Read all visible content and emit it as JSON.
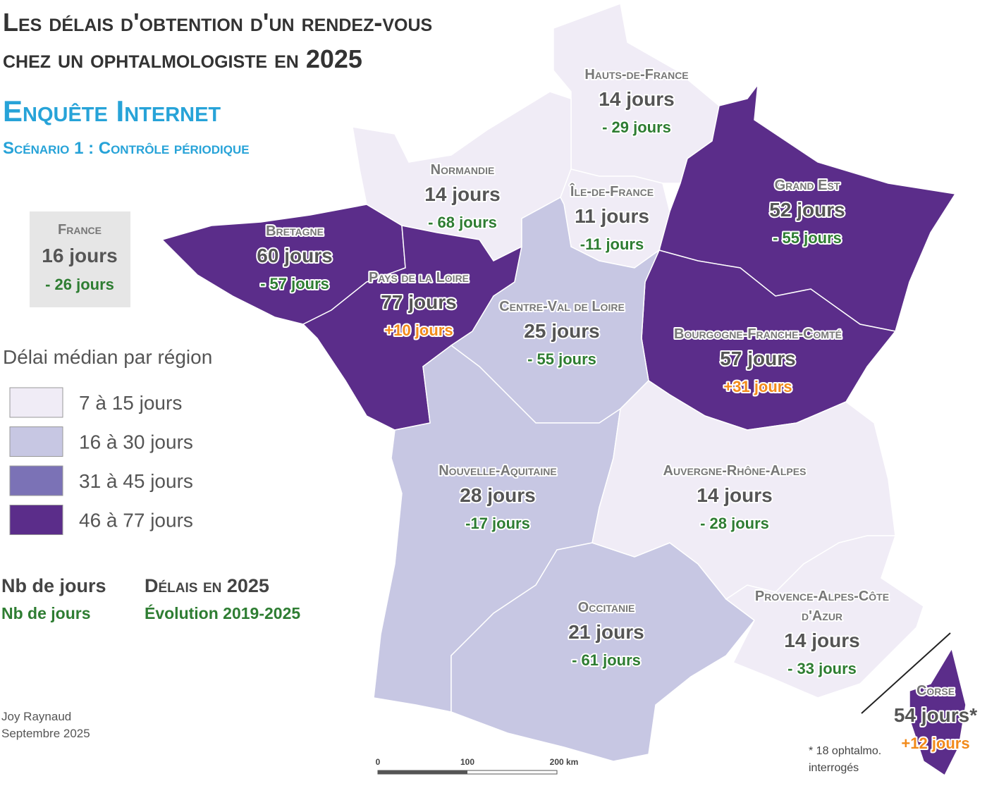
{
  "title": [
    "Les délais d'obtention d'un rendez-vous",
    "chez un ophtalmologiste en 2025"
  ],
  "subtitle": "Enquête Internet",
  "scenario": "Scénario 1 : Contrôle périodique",
  "france": {
    "name": "France",
    "days": "16 jours",
    "evolution": "- 26 jours"
  },
  "legend": {
    "title": "Délai médian par région",
    "classes": [
      {
        "label": "7 à 15 jours",
        "color": "#f0ecf6"
      },
      {
        "label": "16 à 30 jours",
        "color": "#c7c7e3"
      },
      {
        "label": "31 à 45 jours",
        "color": "#7b72b6"
      },
      {
        "label": "46 à 77 jours",
        "color": "#5b2d8a"
      }
    ]
  },
  "key": {
    "days": "Nb de jours",
    "days_label": "Délais en 2025",
    "evolution": "Nb de jours",
    "evolution_label": "Évolution 2019-2025"
  },
  "credit": [
    "Joy Raynaud",
    "Septembre 2025"
  ],
  "scale": [
    "0",
    "100",
    "200 km"
  ],
  "note": [
    "* 18 ophtalmo.",
    "interrogés"
  ],
  "regions": [
    {
      "name": [
        "Hauts-de-France"
      ],
      "days": "14 jours",
      "evolution": "- 29 jours",
      "color": "#f0ecf6",
      "evolution_color": "#2e7d32"
    },
    {
      "name": [
        "Normandie"
      ],
      "days": "14 jours",
      "evolution": "- 68 jours",
      "color": "#f0ecf6",
      "evolution_color": "#2e7d32"
    },
    {
      "name": [
        "Île-de-France"
      ],
      "days": "11 jours",
      "evolution": "-11 jours",
      "color": "#f0ecf6",
      "evolution_color": "#2e7d32"
    },
    {
      "name": [
        "Grand Est"
      ],
      "days": "52 jours",
      "evolution": "- 55 jours",
      "color": "#5b2d8a",
      "evolution_color": "#2e7d32"
    },
    {
      "name": [
        "Bourgogne-Franche-Comté"
      ],
      "days": "57 jours",
      "evolution": "+31 jours",
      "color": "#5b2d8a",
      "evolution_color": "#f28a1a"
    },
    {
      "name": [
        "Bretagne"
      ],
      "days": "60 jours",
      "evolution": "- 57 jours",
      "color": "#5b2d8a",
      "evolution_color": "#2e7d32"
    },
    {
      "name": [
        "Pays de la Loire"
      ],
      "days": "77 jours",
      "evolution": "+10 jours",
      "color": "#5b2d8a",
      "evolution_color": "#f28a1a"
    },
    {
      "name": [
        "Centre-Val de Loire"
      ],
      "days": "25 jours",
      "evolution": "- 55 jours",
      "color": "#c7c7e3",
      "evolution_color": "#2e7d32"
    },
    {
      "name": [
        "Nouvelle-Aquitaine"
      ],
      "days": "28 jours",
      "evolution": "-17 jours",
      "color": "#c7c7e3",
      "evolution_color": "#2e7d32"
    },
    {
      "name": [
        "Occitanie"
      ],
      "days": "21 jours",
      "evolution": "- 61 jours",
      "color": "#c7c7e3",
      "evolution_color": "#2e7d32"
    },
    {
      "name": [
        "Auvergne-Rhône-Alpes"
      ],
      "days": "14 jours",
      "evolution": "- 28 jours",
      "color": "#f0ecf6",
      "evolution_color": "#2e7d32"
    },
    {
      "name": [
        "Provence-Alpes-Côte",
        "d'Azur"
      ],
      "days": "14 jours",
      "evolution": "- 33 jours",
      "color": "#f0ecf6",
      "evolution_color": "#2e7d32"
    },
    {
      "name": [
        "Corse"
      ],
      "days": "54 jours*",
      "evolution": "+12 jours",
      "color": "#5b2d8a",
      "evolution_color": "#f28a1a"
    }
  ]
}
